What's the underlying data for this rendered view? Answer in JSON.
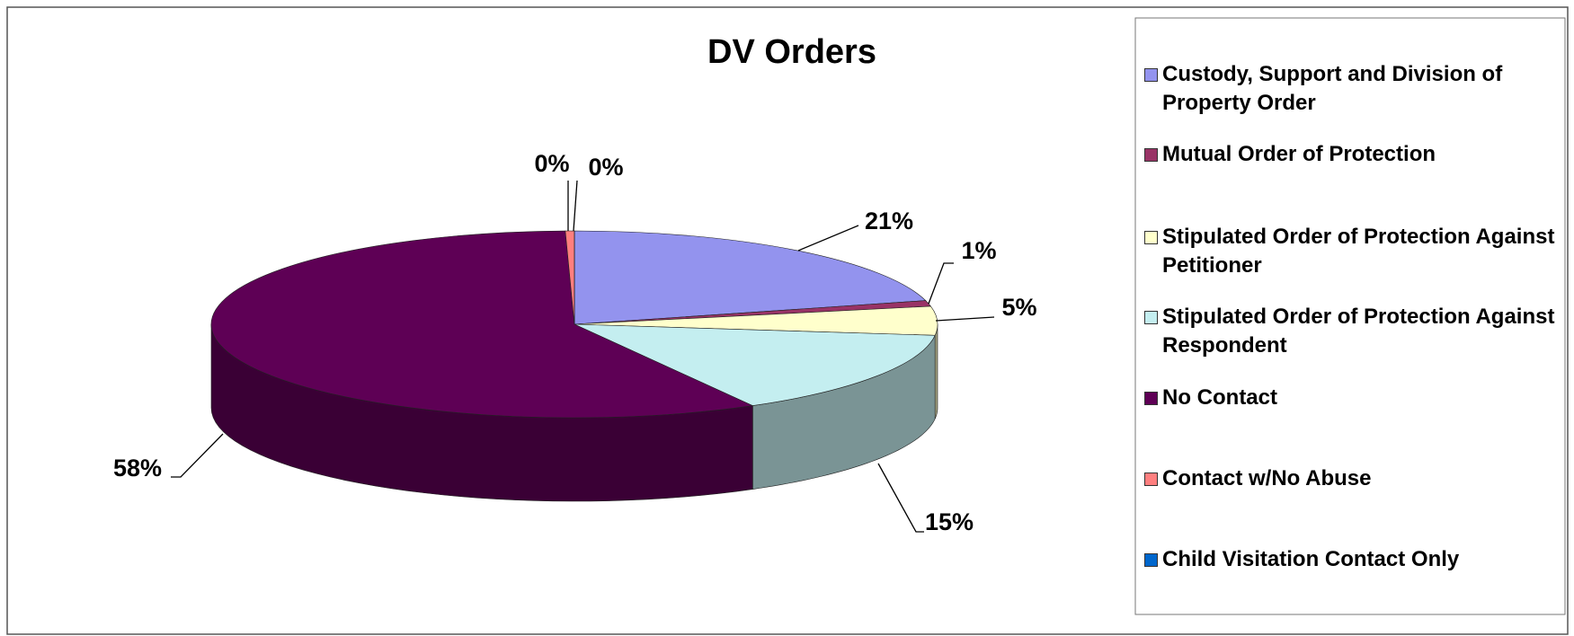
{
  "chart_data": {
    "type": "pie3d",
    "title": "DV Orders",
    "categories": [
      "Custody, Support and Division of Property Order",
      "Mutual Order of Protection",
      "Stipulated Order of Protection Against Petitioner",
      "Stipulated Order of Protection Against Respondent",
      "No Contact",
      "Contact w/No Abuse",
      "Child Visitation Contact Only"
    ],
    "values": [
      21,
      1,
      5,
      15,
      58,
      0.4,
      0
    ],
    "value_labels": [
      "21%",
      "1%",
      "5%",
      "15%",
      "58%",
      "0%",
      "0%"
    ],
    "colors": [
      "#9393ee",
      "#993366",
      "#ffffcc",
      "#c4eef0",
      "#5e0055",
      "#ff7f7f",
      "#0066cc"
    ],
    "legend": "right"
  }
}
